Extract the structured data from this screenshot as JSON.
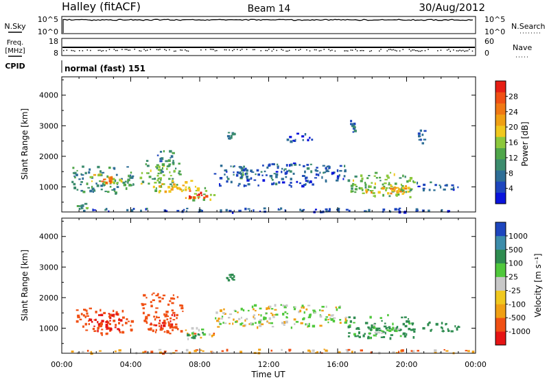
{
  "header": {
    "station": "Halley (fitACF)",
    "beam": "Beam 14",
    "date": "30/Aug/2012"
  },
  "status_panels": {
    "nsky": {
      "label": "N.Sky",
      "ticks_left": [
        "10^5",
        "10^0"
      ],
      "ticks_right": [
        "10^5",
        "10^0"
      ],
      "right_label": "N.Search"
    },
    "freq": {
      "label_line1": "Freq.",
      "label_line2": "[MHz]",
      "ticks_left": [
        "18",
        "8"
      ],
      "ticks_right": [
        "60",
        "0"
      ],
      "right_label": "Nave"
    },
    "cpid": {
      "label": "CPID",
      "mode_text": "normal (fast) 151"
    }
  },
  "colors": {
    "power_scale": [
      "#0a14dc",
      "#1e46be",
      "#2e6e96",
      "#3c8c6e",
      "#4fa64a",
      "#8cc83c",
      "#f0c81e",
      "#f0a014",
      "#f07814",
      "#f05014",
      "#e61e14"
    ],
    "velocity_scale": [
      "#e61414",
      "#f05014",
      "#f0a014",
      "#f0c81e",
      "#c8c8c8",
      "#50c83c",
      "#2e8c50",
      "#3c8caa",
      "#1e46be"
    ]
  },
  "chart_data": [
    {
      "type": "heatmap",
      "name": "power",
      "xlabel": "",
      "ylabel": "Slant Range [km]",
      "x_unit": "hours UT",
      "xlim": [
        0,
        24
      ],
      "ylim": [
        180,
        4600
      ],
      "y_ticks": [
        "4000",
        "3000",
        "2000",
        "1000"
      ],
      "y_tick_values": [
        4000,
        3000,
        2000,
        1000
      ],
      "colorbar": {
        "label": "Power [dB]",
        "range": [
          0,
          32
        ],
        "ticks": [
          "28",
          "24",
          "20",
          "16",
          "12",
          "8",
          "4"
        ],
        "tick_values": [
          28,
          24,
          20,
          16,
          12,
          8,
          4
        ]
      },
      "blobs": [
        {
          "t0": 0.5,
          "t1": 4.2,
          "r0": 800,
          "r1": 1700,
          "value": 10
        },
        {
          "t0": 1.5,
          "t1": 3.5,
          "r0": 1050,
          "r1": 1450,
          "value": 18
        },
        {
          "t0": 2.2,
          "t1": 3.0,
          "r0": 1150,
          "r1": 1350,
          "value": 24
        },
        {
          "t0": 0.7,
          "t1": 1.5,
          "r0": 300,
          "r1": 500,
          "value": 12
        },
        {
          "t0": 4.5,
          "t1": 6.8,
          "r0": 900,
          "r1": 1900,
          "value": 14
        },
        {
          "t0": 5.5,
          "t1": 6.5,
          "r0": 1500,
          "r1": 2250,
          "value": 9
        },
        {
          "t0": 5.0,
          "t1": 7.5,
          "r0": 850,
          "r1": 1250,
          "value": 20
        },
        {
          "t0": 6.8,
          "t1": 8.9,
          "r0": 600,
          "r1": 1050,
          "value": 17
        },
        {
          "t0": 7.2,
          "t1": 8.4,
          "r0": 650,
          "r1": 950,
          "value": 28
        },
        {
          "t0": 8.8,
          "t1": 16.5,
          "r0": 1050,
          "r1": 1800,
          "value": 6
        },
        {
          "t0": 10.0,
          "t1": 11.2,
          "r0": 1300,
          "r1": 1600,
          "value": 9
        },
        {
          "t0": 16.5,
          "t1": 20.4,
          "r0": 700,
          "r1": 1500,
          "value": 14
        },
        {
          "t0": 17.3,
          "t1": 20.1,
          "r0": 800,
          "r1": 1100,
          "value": 20
        },
        {
          "t0": 19.0,
          "t1": 20.0,
          "r0": 850,
          "r1": 1000,
          "value": 23
        },
        {
          "t0": 20.5,
          "t1": 23.0,
          "r0": 900,
          "r1": 1250,
          "value": 6
        },
        {
          "t0": 20.6,
          "t1": 21.0,
          "r0": 2450,
          "r1": 2900,
          "value": 6
        },
        {
          "t0": 16.7,
          "t1": 17.0,
          "r0": 2800,
          "r1": 3200,
          "value": 6
        },
        {
          "t0": 13.0,
          "t1": 14.5,
          "r0": 2500,
          "r1": 2800,
          "value": 5
        },
        {
          "t0": 9.5,
          "t1": 10.0,
          "r0": 2600,
          "r1": 2800,
          "value": 8
        },
        {
          "t0": 0.5,
          "t1": 23.8,
          "r0": 200,
          "r1": 330,
          "value": 5
        }
      ]
    },
    {
      "type": "heatmap",
      "name": "velocity",
      "xlabel": "Time UT",
      "ylabel": "Slant Range [km]",
      "x_unit": "hours UT",
      "xlim": [
        0,
        24
      ],
      "ylim": [
        180,
        4600
      ],
      "x_ticks": [
        "00:00",
        "04:00",
        "08:00",
        "12:00",
        "16:00",
        "20:00",
        "00:00"
      ],
      "x_tick_values": [
        0,
        4,
        8,
        12,
        16,
        20,
        24
      ],
      "y_ticks": [
        "4000",
        "3000",
        "2000",
        "1000"
      ],
      "y_tick_values": [
        4000,
        3000,
        2000,
        1000
      ],
      "colorbar": {
        "label": "Velocity [m s⁻¹]",
        "ticks": [
          "1000",
          "500",
          "100",
          "25",
          "-25",
          "-100",
          "-500",
          "-1000"
        ],
        "tick_values": [
          1000,
          500,
          100,
          25,
          -25,
          -100,
          -500,
          -1000
        ]
      },
      "blobs": [
        {
          "t0": 0.8,
          "t1": 4.2,
          "r0": 800,
          "r1": 1700,
          "value": -300
        },
        {
          "t0": 1.5,
          "t1": 3.4,
          "r0": 950,
          "r1": 1500,
          "value": -600
        },
        {
          "t0": 4.5,
          "t1": 7.0,
          "r0": 850,
          "r1": 2200,
          "value": -200
        },
        {
          "t0": 5.0,
          "t1": 6.6,
          "r0": 900,
          "r1": 1500,
          "value": -500
        },
        {
          "t0": 6.8,
          "t1": 8.8,
          "r0": 650,
          "r1": 1050,
          "value": -60
        },
        {
          "t0": 7.2,
          "t1": 8.3,
          "r0": 700,
          "r1": 950,
          "value": 150
        },
        {
          "t0": 8.8,
          "t1": 16.5,
          "r0": 1050,
          "r1": 1800,
          "value": 0
        },
        {
          "t0": 16.5,
          "t1": 20.4,
          "r0": 700,
          "r1": 1500,
          "value": 150
        },
        {
          "t0": 17.5,
          "t1": 19.5,
          "r0": 850,
          "r1": 1200,
          "value": 60
        },
        {
          "t0": 20.5,
          "t1": 23.0,
          "r0": 900,
          "r1": 1250,
          "value": 300
        },
        {
          "t0": 9.5,
          "t1": 10.0,
          "r0": 2600,
          "r1": 2800,
          "value": 200
        },
        {
          "t0": 0.5,
          "t1": 23.8,
          "r0": 200,
          "r1": 330,
          "value": -80
        }
      ]
    }
  ]
}
